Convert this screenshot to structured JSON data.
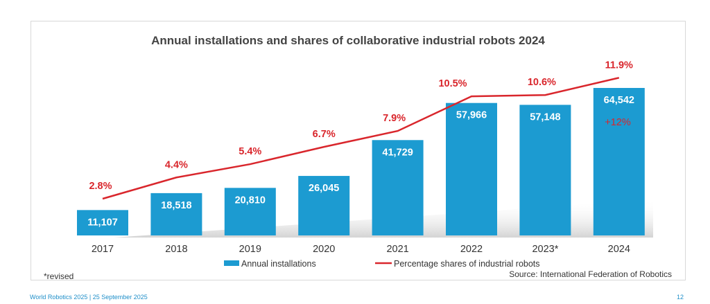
{
  "chart_data": {
    "type": "bar",
    "title": "Annual installations and shares of collaborative industrial robots 2024",
    "categories": [
      "2017",
      "2018",
      "2019",
      "2020",
      "2021",
      "2022",
      "2023*",
      "2024"
    ],
    "series": [
      {
        "name": "Annual installations",
        "type": "bar",
        "values": [
          11107,
          18518,
          20810,
          26045,
          41729,
          57966,
          57148,
          64542
        ],
        "labels": [
          "11,107",
          "18,518",
          "20,810",
          "26,045",
          "41,729",
          "57,966",
          "57,148",
          "64,542"
        ]
      },
      {
        "name": "Percentage shares of industrial robots",
        "type": "line",
        "values": [
          2.8,
          4.4,
          5.4,
          6.7,
          7.9,
          10.5,
          10.6,
          11.9
        ],
        "labels": [
          "2.8%",
          "4.4%",
          "5.4%",
          "6.7%",
          "7.9%",
          "10.5%",
          "10.6%",
          "11.9%"
        ]
      }
    ],
    "annotation": "+12%",
    "note": "*revised",
    "source": "Source: International Federation of Robotics",
    "legend_placement": "bottom",
    "grid": false,
    "colors": {
      "bar": "#1c9bd1",
      "line": "#d9262c"
    }
  },
  "footer": {
    "left": "World Robotics 2025  | 25 September 2025",
    "page": "12"
  }
}
